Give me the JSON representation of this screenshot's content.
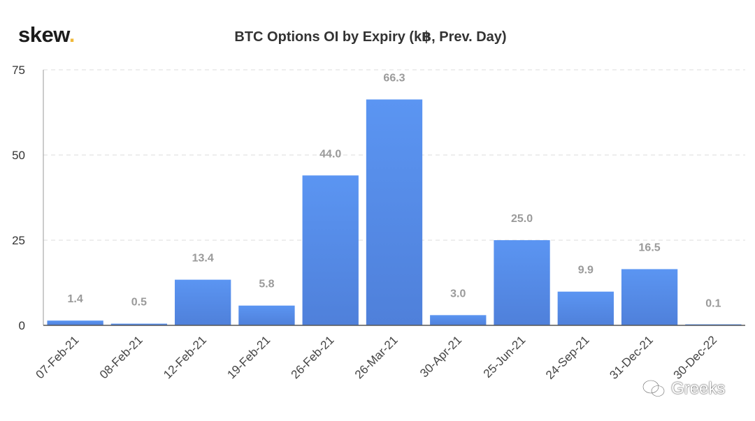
{
  "brand": {
    "name": "skew",
    "dot": "."
  },
  "watermark": {
    "text": "Greeks"
  },
  "chart_data": {
    "type": "bar",
    "title": "BTC Options OI by Expiry (k฿, Prev. Day)",
    "xlabel": "",
    "ylabel": "",
    "categories": [
      "07-Feb-21",
      "08-Feb-21",
      "12-Feb-21",
      "19-Feb-21",
      "26-Feb-21",
      "26-Mar-21",
      "30-Apr-21",
      "25-Jun-21",
      "24-Sep-21",
      "31-Dec-21",
      "30-Dec-22"
    ],
    "values": [
      1.4,
      0.5,
      13.4,
      5.8,
      44.0,
      66.3,
      3.0,
      25.0,
      9.9,
      16.5,
      0.1
    ],
    "value_labels": [
      "1.4",
      "0.5",
      "13.4",
      "5.8",
      "44.0",
      "66.3",
      "3.0",
      "25.0",
      "9.9",
      "16.5",
      "0.1"
    ],
    "ylim": [
      0,
      75
    ],
    "yticks": [
      0,
      25,
      50,
      75
    ],
    "grid": true,
    "legend": "none",
    "colors": {
      "bar_top": "#5b95f2",
      "bar_bottom": "#4f80da",
      "label": "#9a9a9a",
      "axis": "#333333",
      "grid": "#dddddd"
    }
  }
}
